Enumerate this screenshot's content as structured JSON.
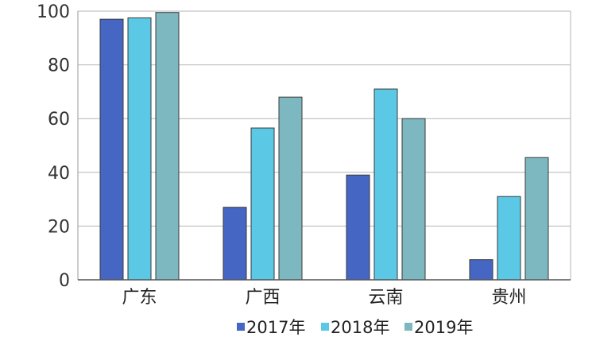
{
  "chart_data": {
    "type": "bar",
    "categories": [
      "广东",
      "广西",
      "云南",
      "贵州"
    ],
    "series": [
      {
        "name": "2017年",
        "values": [
          97,
          27,
          39,
          7.5
        ],
        "color": "#4666c4"
      },
      {
        "name": "2018年",
        "values": [
          97.5,
          56.5,
          71,
          31
        ],
        "color": "#5bc9e6"
      },
      {
        "name": "2019年",
        "values": [
          99.5,
          68,
          60,
          45.5
        ],
        "color": "#7db8c0"
      }
    ],
    "ylim": [
      0,
      100
    ],
    "yticks": [
      0,
      20,
      40,
      60,
      80,
      100
    ],
    "grid": true,
    "legend_position": "bottom",
    "title": "",
    "xlabel": "",
    "ylabel": ""
  }
}
